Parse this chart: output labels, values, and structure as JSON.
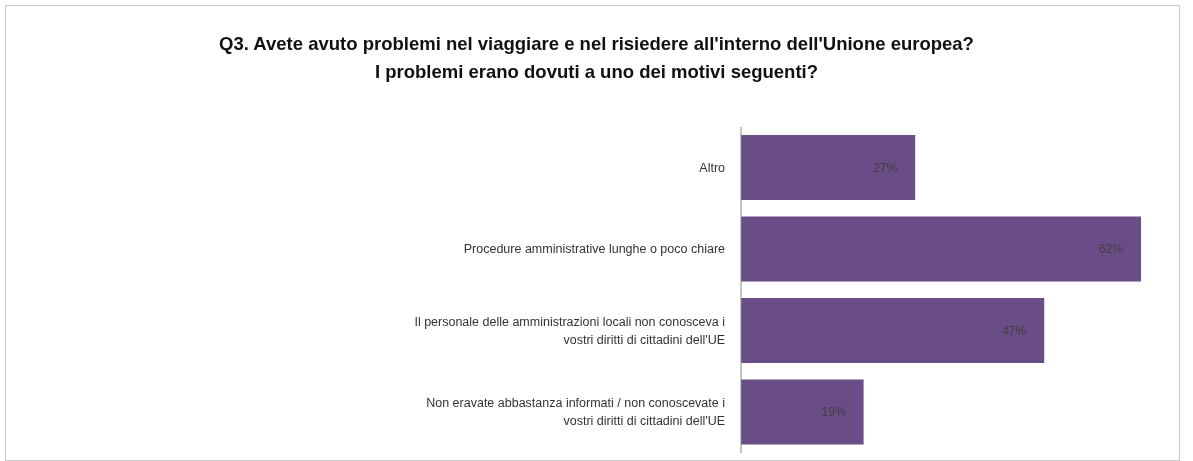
{
  "chart_data": {
    "type": "bar",
    "orientation": "horizontal",
    "title": "Q3. Avete avuto problemi nel viaggiare e nel risiedere all'interno dell'Unione europea?\nI problemi erano dovuti a uno dei motivi seguenti?",
    "categories": [
      "Altro",
      "Procedure amministrative lunghe o poco chiare",
      "Il personale delle amministrazioni locali non conosceva i vostri diritti di cittadini dell'UE",
      "Non eravate abbastanza informati / non conoscevate i vostri diritti di cittadini dell'UE"
    ],
    "values": [
      27,
      62,
      47,
      19
    ],
    "value_labels": [
      "27%",
      "62%",
      "47%",
      "19%"
    ],
    "color": "#6a4c87"
  }
}
